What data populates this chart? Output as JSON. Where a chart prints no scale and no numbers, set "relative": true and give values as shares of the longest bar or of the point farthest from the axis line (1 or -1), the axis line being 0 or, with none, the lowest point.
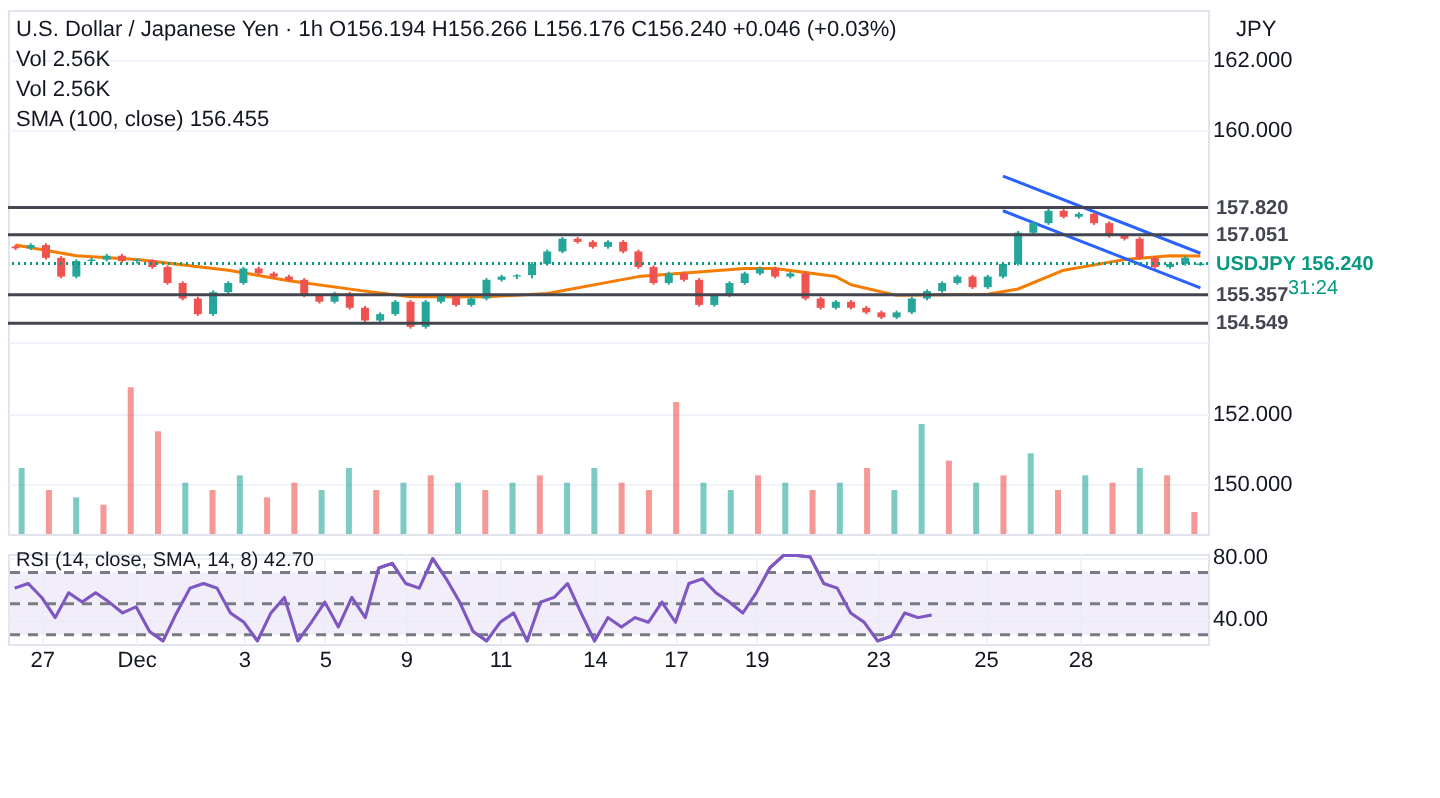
{
  "chart_data": [
    {
      "type": "candlestick",
      "title": "U.S. Dollar / Japanese Yen · 1h",
      "annotations": [
        "O156.194 H156.266 L156.176 C156.240 +0.046 (+0.03%)",
        "Vol 2.56K",
        "Vol 2.56K",
        "SMA (100, close) 156.455",
        "JPY",
        "31:24"
      ],
      "categories": [
        null,
        null,
        null,
        null,
        null,
        null,
        null,
        null,
        null,
        null,
        null,
        null,
        null,
        null,
        null,
        null,
        null,
        null,
        null,
        null,
        null,
        null,
        null,
        null,
        null,
        null,
        null,
        null,
        null,
        null,
        null,
        null,
        null,
        null,
        null,
        null,
        null,
        null,
        null,
        null,
        null,
        null,
        null,
        null,
        null,
        null,
        null,
        null,
        null,
        null,
        null,
        null,
        null,
        null,
        null,
        null,
        null,
        null,
        null,
        null,
        null,
        null,
        null,
        null,
        null,
        null,
        null,
        null,
        null,
        null,
        null,
        null,
        null,
        null,
        null,
        null,
        null,
        null,
        null
      ],
      "ohlc": [
        [
          156.72,
          156.77,
          156.62,
          156.67
        ],
        [
          156.67,
          156.81,
          156.62,
          156.76
        ],
        [
          156.76,
          156.81,
          156.35,
          156.4
        ],
        [
          156.4,
          156.45,
          155.82,
          155.87
        ],
        [
          155.87,
          156.36,
          155.82,
          156.31
        ],
        [
          156.31,
          156.4,
          156.26,
          156.35
        ],
        [
          156.35,
          156.51,
          156.3,
          156.46
        ],
        [
          156.46,
          156.51,
          156.26,
          156.31
        ],
        [
          156.31,
          156.38,
          156.24,
          156.34
        ],
        [
          156.34,
          156.36,
          156.09,
          156.14
        ],
        [
          156.14,
          156.19,
          155.64,
          155.69
        ],
        [
          155.69,
          155.74,
          155.2,
          155.25
        ],
        [
          155.25,
          155.3,
          154.76,
          154.81
        ],
        [
          154.81,
          155.48,
          154.76,
          155.43
        ],
        [
          155.43,
          155.74,
          155.38,
          155.69
        ],
        [
          155.69,
          156.15,
          155.64,
          156.1
        ],
        [
          156.1,
          156.15,
          155.91,
          155.96
        ],
        [
          155.96,
          156.01,
          155.82,
          155.87
        ],
        [
          155.87,
          155.92,
          155.73,
          155.78
        ],
        [
          155.78,
          155.83,
          155.29,
          155.34
        ],
        [
          155.34,
          155.39,
          155.11,
          155.16
        ],
        [
          155.16,
          155.44,
          155.11,
          155.39
        ],
        [
          155.39,
          155.44,
          154.94,
          154.99
        ],
        [
          154.99,
          155.04,
          154.58,
          154.63
        ],
        [
          154.63,
          154.86,
          154.58,
          154.81
        ],
        [
          154.81,
          155.21,
          154.76,
          155.16
        ],
        [
          155.16,
          155.21,
          154.4,
          154.45
        ],
        [
          154.45,
          155.21,
          154.4,
          155.16
        ],
        [
          155.16,
          155.39,
          155.11,
          155.34
        ],
        [
          155.34,
          155.39,
          155.02,
          155.07
        ],
        [
          155.07,
          155.3,
          155.02,
          155.25
        ],
        [
          155.25,
          155.83,
          155.2,
          155.78
        ],
        [
          155.78,
          155.92,
          155.73,
          155.87
        ],
        [
          155.87,
          155.94,
          155.8,
          155.91
        ],
        [
          155.91,
          156.28,
          155.82,
          156.23
        ],
        [
          156.23,
          156.63,
          156.18,
          156.58
        ],
        [
          156.58,
          156.99,
          156.53,
          156.94
        ],
        [
          156.94,
          156.99,
          156.8,
          156.85
        ],
        [
          156.85,
          156.9,
          156.66,
          156.71
        ],
        [
          156.71,
          156.9,
          156.66,
          156.85
        ],
        [
          156.85,
          156.9,
          156.53,
          156.58
        ],
        [
          156.58,
          156.63,
          156.09,
          156.14
        ],
        [
          156.14,
          156.19,
          155.64,
          155.69
        ],
        [
          155.69,
          156.01,
          155.64,
          155.96
        ],
        [
          155.96,
          156.01,
          155.73,
          155.78
        ],
        [
          155.78,
          155.83,
          155.02,
          155.07
        ],
        [
          155.07,
          155.39,
          155.02,
          155.34
        ],
        [
          155.34,
          155.74,
          155.29,
          155.69
        ],
        [
          155.69,
          156.01,
          155.64,
          155.96
        ],
        [
          155.96,
          156.15,
          155.91,
          156.1
        ],
        [
          156.1,
          156.15,
          155.82,
          155.87
        ],
        [
          155.87,
          156.01,
          155.82,
          155.96
        ],
        [
          155.96,
          156.01,
          155.2,
          155.25
        ],
        [
          155.25,
          155.3,
          154.94,
          154.99
        ],
        [
          154.99,
          155.21,
          154.94,
          155.16
        ],
        [
          155.16,
          155.21,
          154.94,
          154.99
        ],
        [
          154.99,
          155.04,
          154.81,
          154.86
        ],
        [
          154.86,
          154.91,
          154.67,
          154.72
        ],
        [
          154.72,
          154.91,
          154.67,
          154.86
        ],
        [
          154.86,
          155.3,
          154.81,
          155.25
        ],
        [
          155.25,
          155.51,
          155.2,
          155.46
        ],
        [
          155.46,
          155.74,
          155.41,
          155.69
        ],
        [
          155.69,
          155.92,
          155.64,
          155.87
        ],
        [
          155.87,
          155.92,
          155.52,
          155.57
        ],
        [
          155.57,
          155.92,
          155.52,
          155.87
        ],
        [
          155.87,
          156.28,
          155.82,
          156.23
        ],
        [
          156.23,
          157.16,
          156.18,
          157.11
        ],
        [
          157.11,
          157.43,
          157.06,
          157.38
        ],
        [
          157.38,
          157.78,
          157.33,
          157.73
        ],
        [
          157.73,
          157.78,
          157.51,
          157.56
        ],
        [
          157.56,
          157.69,
          157.51,
          157.64
        ],
        [
          157.64,
          157.69,
          157.33,
          157.38
        ],
        [
          157.38,
          157.43,
          156.97,
          157.02
        ],
        [
          157.02,
          157.07,
          156.89,
          156.94
        ],
        [
          156.94,
          156.99,
          156.35,
          156.4
        ],
        [
          156.4,
          156.45,
          156.09,
          156.14
        ],
        [
          156.14,
          156.28,
          156.09,
          156.23
        ],
        [
          156.23,
          156.45,
          156.18,
          156.4
        ],
        [
          156.194,
          156.266,
          156.176,
          156.24
        ]
      ],
      "series": [
        {
          "type": "line",
          "color": "#f57c00",
          "values": [
            156.76,
            null,
            null,
            null,
            156.46,
            null,
            null,
            null,
            156.35,
            null,
            null,
            null,
            null,
            null,
            156.05,
            null,
            null,
            null,
            155.75,
            null,
            null,
            null,
            null,
            155.46,
            null,
            null,
            155.3,
            null,
            null,
            null,
            null,
            155.3,
            null,
            null,
            null,
            155.39,
            null,
            null,
            null,
            null,
            null,
            155.87,
            null,
            null,
            null,
            null,
            null,
            null,
            156.1,
            null,
            156.1,
            null,
            null,
            null,
            155.87,
            155.64,
            null,
            null,
            155.34,
            null,
            null,
            null,
            null,
            null,
            155.37,
            null,
            155.52,
            null,
            null,
            156.05,
            null,
            null,
            null,
            156.35,
            null,
            null,
            156.46,
            null,
            156.455
          ]
        },
        {
          "type": "line",
          "color": "#2962ff",
          "values": [
            null,
            null,
            null,
            null,
            null,
            null,
            null,
            null,
            null,
            null,
            null,
            null,
            null,
            null,
            null,
            null,
            null,
            null,
            null,
            null,
            null,
            null,
            null,
            null,
            null,
            null,
            null,
            null,
            null,
            null,
            null,
            null,
            null,
            null,
            null,
            null,
            null,
            null,
            null,
            null,
            null,
            null,
            null,
            null,
            null,
            null,
            null,
            null,
            null,
            null,
            null,
            null,
            null,
            null,
            null,
            null,
            null,
            null,
            null,
            null,
            null,
            null,
            null,
            null,
            null,
            158.71,
            null,
            null,
            null,
            null,
            null,
            null,
            null,
            null,
            null,
            null,
            null,
            null,
            156.53
          ]
        },
        {
          "type": "line",
          "color": "#2962ff",
          "values": [
            null,
            null,
            null,
            null,
            null,
            null,
            null,
            null,
            null,
            null,
            null,
            null,
            null,
            null,
            null,
            null,
            null,
            null,
            null,
            null,
            null,
            null,
            null,
            null,
            null,
            null,
            null,
            null,
            null,
            null,
            null,
            null,
            null,
            null,
            null,
            null,
            null,
            null,
            null,
            null,
            null,
            null,
            null,
            null,
            null,
            null,
            null,
            null,
            null,
            null,
            null,
            null,
            null,
            null,
            null,
            null,
            null,
            null,
            null,
            null,
            null,
            null,
            null,
            null,
            null,
            157.73,
            null,
            null,
            null,
            null,
            null,
            null,
            null,
            null,
            null,
            null,
            null,
            null,
            155.55
          ]
        }
      ],
      "ref_lines": [
        {
          "axis": "y",
          "value": 157.82,
          "label": "157.820",
          "color": "#434651"
        },
        {
          "axis": "y",
          "value": 157.051,
          "label": "157.051",
          "color": "#434651"
        },
        {
          "axis": "y",
          "value": 155.357,
          "label": "155.357",
          "color": "#434651"
        },
        {
          "axis": "y",
          "value": 154.549,
          "label": "154.549",
          "color": "#434651"
        },
        {
          "axis": "y",
          "value": 156.24,
          "label": "USDJPY 156.240",
          "color": "#089981",
          "line_style": "dotted"
        }
      ],
      "ylim": [
        148.6,
        163.4
      ],
      "yticks": [
        {
          "value": 150,
          "label": "150.000"
        },
        {
          "value": 152,
          "label": "152.000"
        },
        {
          "value": 154,
          "label": null
        },
        {
          "value": 160,
          "label": "160.000"
        },
        {
          "value": 162,
          "label": "162.000"
        }
      ],
      "grid": "y",
      "tick_labels": "y"
    },
    {
      "type": "bar",
      "relative": true,
      "tick_labels": false,
      "categories": [
        null,
        null,
        null,
        null,
        null,
        null,
        null,
        null,
        null,
        null,
        null,
        null,
        null,
        null,
        null,
        null,
        null,
        null,
        null,
        null,
        null,
        null,
        null,
        null,
        null,
        null,
        null,
        null,
        null,
        null,
        null,
        null,
        null,
        null,
        null,
        null,
        null,
        null,
        null,
        null,
        null,
        null,
        null,
        null
      ],
      "values": [
        0.45,
        0.3,
        0.25,
        0.2,
        1.0,
        0.7,
        0.35,
        0.3,
        0.4,
        0.25,
        0.35,
        0.3,
        0.45,
        0.3,
        0.35,
        0.4,
        0.35,
        0.3,
        0.35,
        0.4,
        0.35,
        0.45,
        0.35,
        0.3,
        0.9,
        0.35,
        0.3,
        0.4,
        0.35,
        0.3,
        0.35,
        0.45,
        0.3,
        0.75,
        0.5,
        0.35,
        0.4,
        0.55,
        0.3,
        0.4,
        0.35,
        0.45,
        0.4,
        0.15
      ],
      "colors": [
        "#26a69a",
        "#ef5350",
        "#26a69a",
        "#ef5350",
        "#ef5350",
        "#ef5350",
        "#26a69a",
        "#ef5350",
        "#26a69a",
        "#ef5350",
        "#ef5350",
        "#26a69a",
        "#26a69a",
        "#ef5350",
        "#26a69a",
        "#ef5350",
        "#26a69a",
        "#ef5350",
        "#26a69a",
        "#ef5350",
        "#26a69a",
        "#26a69a",
        "#ef5350",
        "#ef5350",
        "#ef5350",
        "#26a69a",
        "#26a69a",
        "#ef5350",
        "#26a69a",
        "#ef5350",
        "#26a69a",
        "#ef5350",
        "#26a69a",
        "#26a69a",
        "#ef5350",
        "#26a69a",
        "#ef5350",
        "#26a69a",
        "#ef5350",
        "#26a69a",
        "#ef5350",
        "#26a69a",
        "#ef5350",
        "#ef5350"
      ]
    },
    {
      "type": "line",
      "title": "RSI (14, close, SMA, 14, 8) 42.70",
      "categories": [
        null,
        null,
        "27",
        null,
        null,
        null,
        null,
        null,
        null,
        "Dec",
        null,
        null,
        null,
        null,
        null,
        null,
        null,
        "3",
        null,
        null,
        null,
        null,
        null,
        "5",
        null,
        null,
        null,
        null,
        null,
        "9",
        null,
        null,
        null,
        null,
        null,
        null,
        "11",
        null,
        null,
        null,
        null,
        null,
        null,
        "14",
        null,
        null,
        null,
        null,
        null,
        "17",
        null,
        null,
        null,
        null,
        null,
        "19",
        null,
        null,
        null,
        null,
        null,
        null,
        null,
        null,
        "23",
        null,
        null,
        null,
        null,
        null,
        null,
        null,
        "25",
        null,
        null,
        null,
        null,
        null,
        null,
        "28",
        null,
        null,
        null,
        null,
        null,
        null,
        null,
        null,
        null
      ],
      "values": [
        60,
        63,
        54,
        41,
        57,
        51,
        57,
        51,
        44,
        48,
        32,
        26,
        44,
        60,
        63,
        60,
        44,
        38,
        26,
        44,
        54,
        26,
        38,
        51,
        35,
        54,
        41,
        73,
        76,
        63,
        60,
        79,
        66,
        51,
        32,
        26,
        38,
        44,
        26,
        51,
        54,
        63,
        44,
        26,
        41,
        35,
        41,
        38,
        51,
        38,
        63,
        66,
        57,
        51,
        44,
        57,
        73,
        81,
        81,
        80,
        63,
        60,
        44,
        38,
        26,
        29,
        44,
        41,
        42.7,
        null,
        null,
        null,
        null,
        null,
        null,
        null,
        null,
        null,
        null,
        null,
        null,
        null,
        null,
        null,
        null,
        null,
        null,
        null,
        null
      ],
      "color": "#7e57c2",
      "ref_lines": [
        {
          "axis": "y",
          "value": 70,
          "color": "#787b86",
          "line_style": "dashed"
        },
        {
          "axis": "y",
          "value": 50,
          "color": "#787b86",
          "line_style": "dashed"
        },
        {
          "axis": "y",
          "value": 30,
          "color": "#787b86",
          "line_style": "dashed"
        }
      ],
      "bands": [
        {
          "axis": "y",
          "from": 30,
          "to": 70,
          "color": "#ede7f6"
        }
      ],
      "ylim": [
        24,
        82
      ],
      "yticks": [
        {
          "value": 40,
          "label": "40.00"
        },
        {
          "value": 80,
          "label": "80.00"
        }
      ],
      "grid": true
    }
  ]
}
